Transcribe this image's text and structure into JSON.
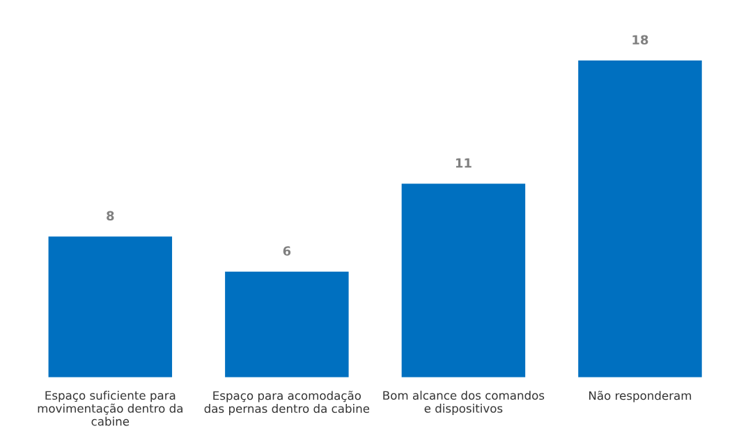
{
  "chart_data": {
    "type": "bar",
    "categories": [
      "Espaço suficiente para\nmovimentação dentro da\ncabine",
      "Espaço para acomodação\ndas pernas dentro da cabine",
      "Bom alcance dos comandos\ne dispositivos",
      "Não responderam"
    ],
    "values": [
      8,
      6,
      11,
      18
    ],
    "color": "#0070c0",
    "data_labels": true,
    "grid": false,
    "legend": false
  }
}
